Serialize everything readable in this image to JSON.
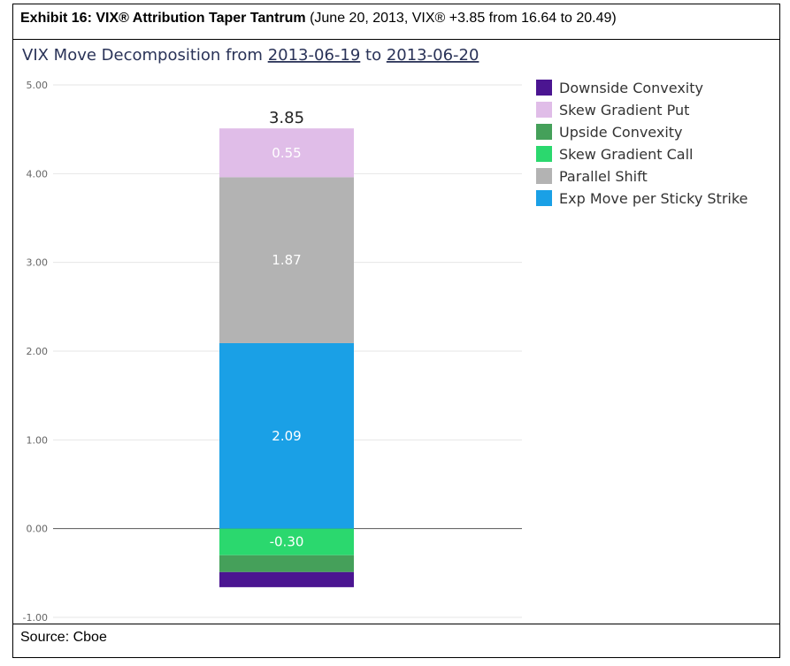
{
  "header": {
    "bold": "Exhibit 16: VIX® Attribution Taper Tantrum",
    "rest": " (June 20, 2013, VIX® +3.85 from 16.64 to 20.49)"
  },
  "source": "Source: Cboe",
  "chart_data": {
    "type": "bar",
    "stacked": true,
    "title": {
      "prefix": "VIX Move Decomposition from ",
      "date_from": "2013-06-19",
      "joiner": " to ",
      "date_to": "2013-06-20"
    },
    "ylim": [
      -1,
      5
    ],
    "yticks": [
      "-1.00",
      "0.00",
      "1.00",
      "2.00",
      "3.00",
      "4.00",
      "5.00"
    ],
    "grid": true,
    "legend_position": "right",
    "total_label": "3.85",
    "series": [
      {
        "name": "Downside Convexity",
        "value": -0.17,
        "color": "#4b1591",
        "label": ""
      },
      {
        "name": "Skew Gradient Put",
        "value": 0.55,
        "color": "#e0bde8",
        "label": "0.55"
      },
      {
        "name": "Upside Convexity",
        "value": -0.19,
        "color": "#45a05a",
        "label": ""
      },
      {
        "name": "Skew Gradient Call",
        "value": -0.3,
        "color": "#2bd86e",
        "label": "-0.30"
      },
      {
        "name": "Parallel Shift",
        "value": 1.87,
        "color": "#b3b3b3",
        "label": "1.87"
      },
      {
        "name": "Exp Move per Sticky Strike",
        "value": 2.09,
        "color": "#1aa0e6",
        "label": "2.09"
      }
    ]
  }
}
